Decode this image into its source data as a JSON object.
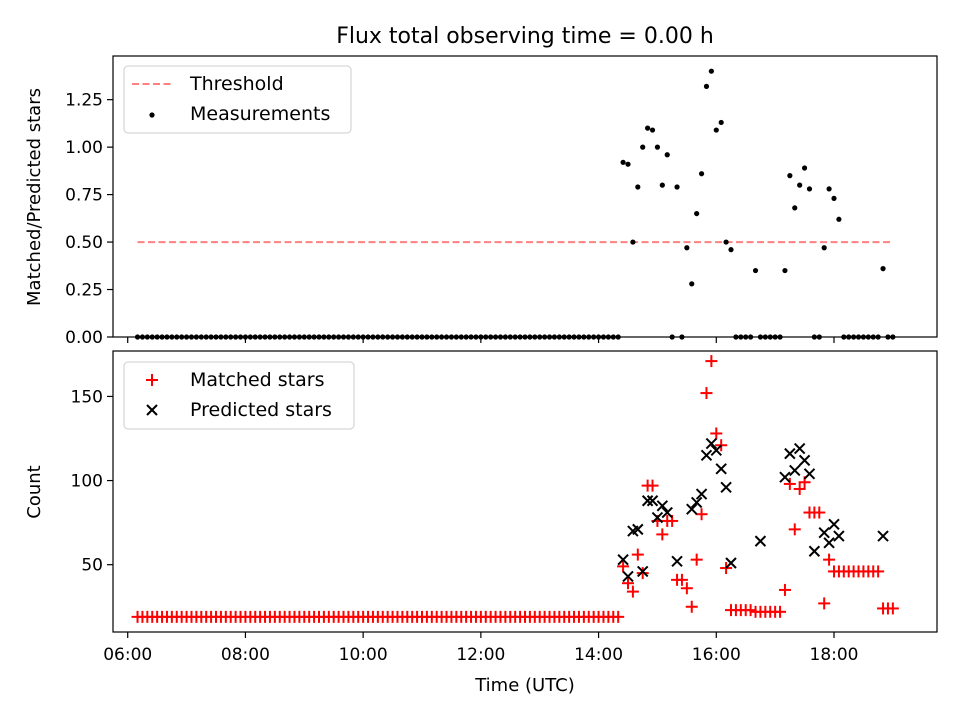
{
  "chart_data": [
    {
      "type": "scatter",
      "title": "Flux total observing time = 0.00 h",
      "xlabel": "",
      "ylabel": "Matched/Predicted stars",
      "xlim": [
        "05:45",
        "19:45"
      ],
      "ylim": [
        0,
        1.48
      ],
      "yticks": [
        0,
        0.25,
        0.5,
        0.75,
        1.0,
        1.25
      ],
      "ytick_labels": [
        "0.00",
        "0.25",
        "0.50",
        "0.75",
        "1.00",
        "1.25"
      ],
      "xticks": [
        "06:00",
        "08:00",
        "10:00",
        "12:00",
        "14:00",
        "16:00",
        "18:00"
      ],
      "legend": {
        "placement": "top-left",
        "entries": [
          "Threshold",
          "Measurements"
        ]
      },
      "threshold": {
        "name": "Threshold",
        "y": 0.5,
        "x_range": [
          "06:10",
          "19:00"
        ],
        "color": "#ff8080"
      },
      "series": [
        {
          "name": "Measurements",
          "marker": "dot",
          "color": "#000000",
          "zero_span": {
            "x_range": [
              "06:10",
              "14:20"
            ],
            "step_min": 5,
            "y": 0
          },
          "x": [
            "14:25",
            "14:30",
            "14:35",
            "14:40",
            "14:45",
            "14:50",
            "14:55",
            "15:00",
            "15:05",
            "15:10",
            "15:15",
            "15:20",
            "15:25",
            "15:30",
            "15:35",
            "15:40",
            "15:45",
            "15:50",
            "15:55",
            "16:00",
            "16:05",
            "16:10",
            "16:15",
            "16:20",
            "16:25",
            "16:30",
            "16:35",
            "16:40",
            "16:45",
            "16:50",
            "16:55",
            "17:00",
            "17:05",
            "17:10",
            "17:15",
            "17:20",
            "17:25",
            "17:30",
            "17:35",
            "17:40",
            "17:45",
            "17:50",
            "17:55",
            "18:00",
            "18:05",
            "18:10",
            "18:15",
            "18:20",
            "18:25",
            "18:30",
            "18:35",
            "18:40",
            "18:45",
            "18:50",
            "18:55",
            "19:00"
          ],
          "y": [
            0.92,
            0.91,
            0.5,
            0.79,
            1.0,
            1.1,
            1.09,
            1.0,
            0.8,
            0.96,
            0,
            0.79,
            0,
            0.47,
            0.28,
            0.65,
            0.86,
            1.32,
            1.4,
            1.09,
            1.13,
            0.5,
            0.46,
            0,
            0,
            0,
            0,
            0.35,
            0,
            0,
            0,
            0,
            0,
            0.35,
            0.85,
            0.68,
            0.8,
            0.89,
            0.78,
            0,
            0,
            0.47,
            0.78,
            0.73,
            0.62,
            0,
            0,
            0,
            0,
            0,
            0,
            0,
            0,
            0.36,
            0,
            0
          ]
        }
      ]
    },
    {
      "type": "scatter",
      "title": "",
      "xlabel": "Time (UTC)",
      "ylabel": "Count",
      "xlim": [
        "05:45",
        "19:45"
      ],
      "ylim": [
        10,
        177
      ],
      "yticks": [
        50,
        100,
        150
      ],
      "ytick_labels": [
        "50",
        "100",
        "150"
      ],
      "xticks": [
        "06:00",
        "08:00",
        "10:00",
        "12:00",
        "14:00",
        "16:00",
        "18:00"
      ],
      "xtick_labels": [
        "06:00",
        "08:00",
        "10:00",
        "12:00",
        "14:00",
        "16:00",
        "18:00"
      ],
      "legend": {
        "placement": "top-left",
        "entries": [
          "Matched stars",
          "Predicted stars"
        ]
      },
      "series": [
        {
          "name": "Matched stars",
          "marker": "plus",
          "color": "#ff0000",
          "flat_span": {
            "x_range": [
              "06:10",
              "14:20"
            ],
            "step_min": 5,
            "y": 19
          },
          "x": [
            "14:25",
            "14:30",
            "14:35",
            "14:40",
            "14:45",
            "14:50",
            "14:55",
            "15:00",
            "15:05",
            "15:10",
            "15:15",
            "15:20",
            "15:25",
            "15:30",
            "15:35",
            "15:40",
            "15:45",
            "15:50",
            "15:55",
            "16:00",
            "16:05",
            "16:10",
            "16:15",
            "16:20",
            "16:25",
            "16:30",
            "16:35",
            "16:40",
            "16:45",
            "16:50",
            "16:55",
            "17:00",
            "17:05",
            "17:10",
            "17:15",
            "17:20",
            "17:25",
            "17:30",
            "17:35",
            "17:40",
            "17:45",
            "17:50",
            "17:55",
            "18:00",
            "18:05",
            "18:10",
            "18:15",
            "18:20",
            "18:25",
            "18:30",
            "18:35",
            "18:40",
            "18:45",
            "18:50",
            "18:55",
            "19:00"
          ],
          "y": [
            49,
            39,
            34,
            56,
            45,
            97,
            97,
            76,
            68,
            76,
            76,
            41,
            41,
            36,
            25,
            53,
            80,
            152,
            171,
            128,
            121,
            48,
            23,
            23,
            23,
            23,
            23,
            22,
            22,
            22,
            22,
            22,
            22,
            35,
            98,
            71,
            95,
            99,
            81,
            81,
            81,
            27,
            53,
            46,
            46,
            46,
            46,
            46,
            46,
            46,
            46,
            46,
            46,
            24,
            24,
            24
          ]
        },
        {
          "name": "Predicted stars",
          "marker": "x",
          "color": "#000000",
          "x": [
            "14:25",
            "14:30",
            "14:35",
            "14:40",
            "14:45",
            "14:50",
            "14:55",
            "15:00",
            "15:05",
            "15:10",
            "15:20",
            "15:35",
            "15:40",
            "15:45",
            "15:50",
            "15:55",
            "16:00",
            "16:05",
            "16:10",
            "16:15",
            "16:45",
            "17:10",
            "17:15",
            "17:20",
            "17:25",
            "17:30",
            "17:35",
            "17:40",
            "17:50",
            "17:55",
            "18:00",
            "18:05",
            "18:50"
          ],
          "y": [
            53,
            43,
            70,
            71,
            46,
            88,
            88,
            78,
            85,
            81,
            52,
            83,
            87,
            92,
            115,
            122,
            118,
            107,
            96,
            51,
            64,
            102,
            116,
            106,
            119,
            112,
            104,
            58,
            69,
            63,
            74,
            67,
            67
          ]
        }
      ]
    }
  ]
}
